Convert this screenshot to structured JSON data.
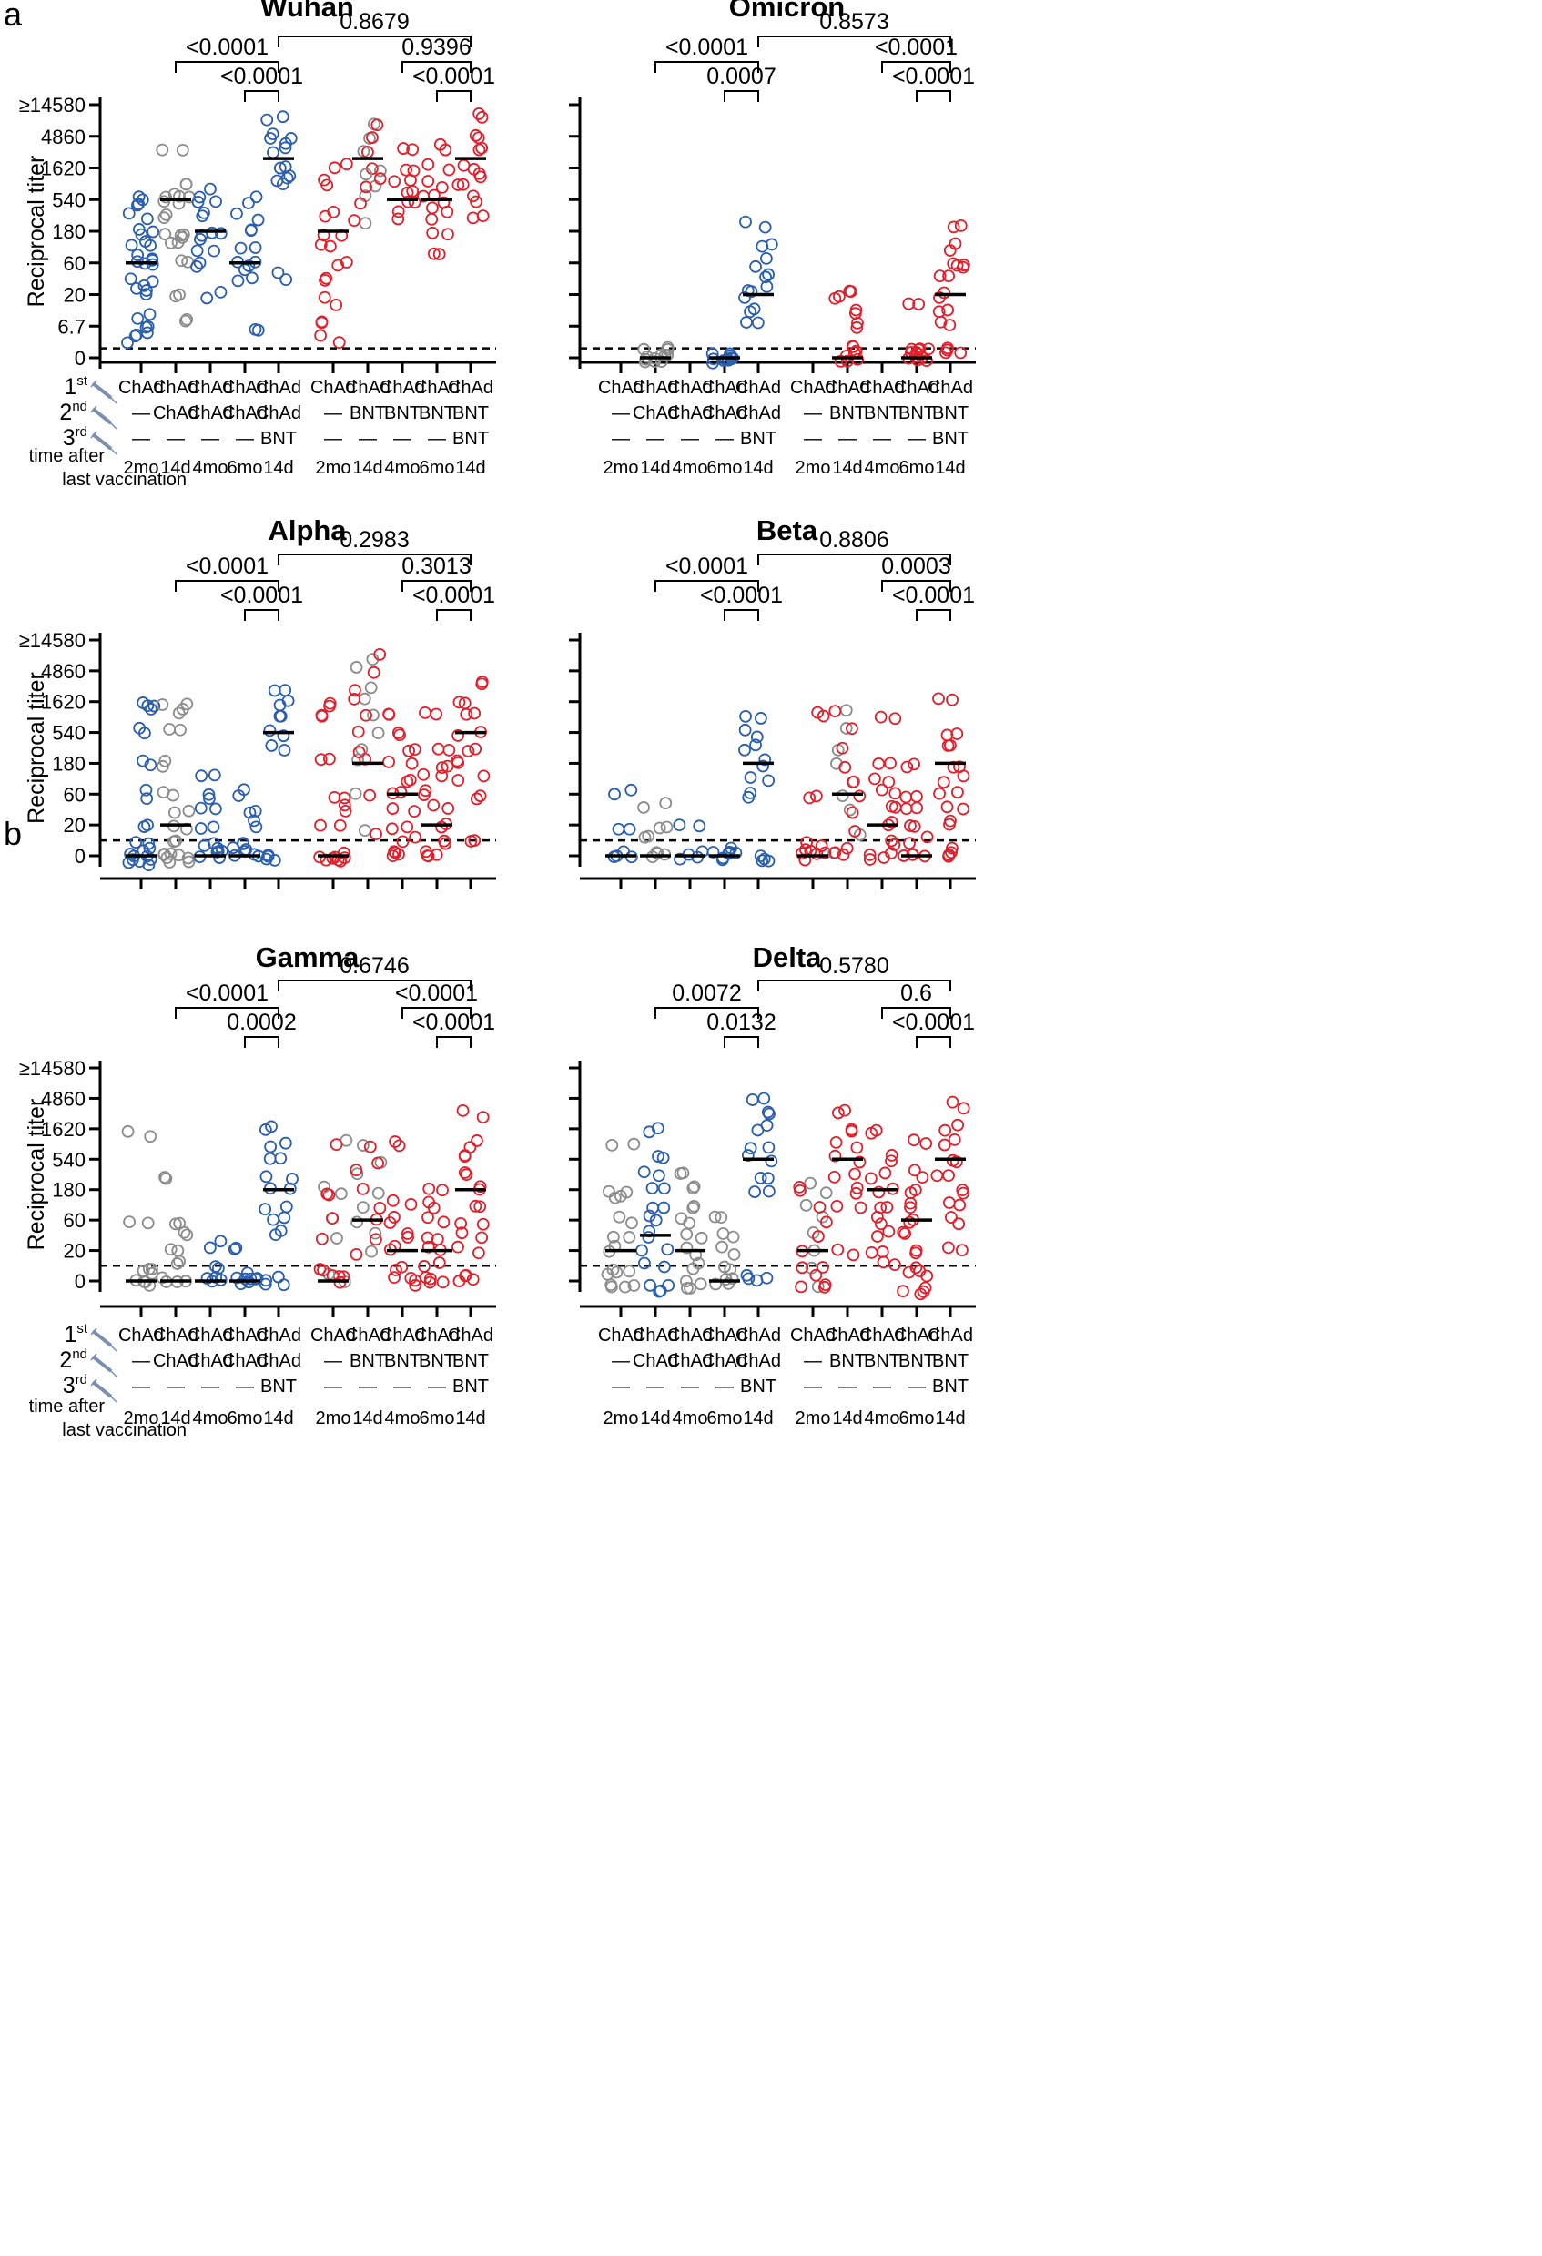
{
  "panel_letters": [
    "a",
    "b"
  ],
  "legend": {
    "rows": [
      {
        "base": "1",
        "sup": "st",
        "icon": "syringe-icon"
      },
      {
        "base": "2",
        "sup": "nd",
        "icon": "syringe-icon"
      },
      {
        "base": "3",
        "sup": "rd",
        "icon": "syringe-icon"
      }
    ],
    "time_label_line1": "time after",
    "time_label_line2": "last vaccination"
  },
  "groups": {
    "dose1": [
      "ChAd",
      "ChAd",
      "ChAd",
      "ChAd",
      "ChAd",
      "ChAd",
      "ChAd",
      "ChAd",
      "ChAd",
      "ChAd"
    ],
    "dose2": [
      "—",
      "ChAd",
      "ChAd",
      "ChAd",
      "ChAd",
      "—",
      "BNT",
      "BNT",
      "BNT",
      "BNT"
    ],
    "dose3": [
      "—",
      "—",
      "—",
      "—",
      "BNT",
      "—",
      "—",
      "—",
      "—",
      "BNT"
    ],
    "time": [
      "2mo",
      "14d",
      "4mo",
      "6mo",
      "14d",
      "2mo",
      "14d",
      "4mo",
      "6mo",
      "14d"
    ]
  },
  "colors": {
    "blue": "#2b5fad",
    "red": "#e2202c",
    "gray": "#8c8c8c",
    "axis": "#000000"
  },
  "chart_data": [
    {
      "type": "scatter",
      "title": "Wuhan",
      "ylabel": "Reciprocal titer",
      "yticks": [
        "0",
        "6.7",
        "20",
        "60",
        "180",
        "540",
        "1620",
        "4860",
        "≥14580"
      ],
      "ylim": [
        0,
        8
      ],
      "cutoff": 0.3,
      "medians": [
        3,
        5,
        4,
        3,
        6.3,
        4,
        6.3,
        5,
        5,
        6.3
      ],
      "brackets": [
        {
          "label": "<0.0001",
          "from": 1,
          "to": 4,
          "tier": 2
        },
        {
          "label": "<0.0001",
          "from": 3,
          "to": 4,
          "tier": 1
        },
        {
          "label": "0.8679",
          "from": 4,
          "to": 9,
          "tier": 3
        },
        {
          "label": "0.9396",
          "from": 7,
          "to": 9,
          "tier": 2
        },
        {
          "label": "<0.0001",
          "from": 8,
          "to": 9,
          "tier": 1
        }
      ]
    },
    {
      "type": "scatter",
      "title": "Omicron",
      "ylabel": "",
      "yticks": [
        "",
        "",
        "",
        "",
        "",
        "",
        "",
        "",
        ""
      ],
      "ylim": [
        0,
        8
      ],
      "cutoff": 0.3,
      "medians": [
        null,
        0,
        null,
        0,
        2,
        null,
        0,
        null,
        0,
        2
      ],
      "brackets": [
        {
          "label": "<0.0001",
          "from": 1,
          "to": 4,
          "tier": 2
        },
        {
          "label": "0.0007",
          "from": 3,
          "to": 4,
          "tier": 1
        },
        {
          "label": "0.8573",
          "from": 4,
          "to": 9,
          "tier": 3
        },
        {
          "label": "<0.0001",
          "from": 7,
          "to": 9,
          "tier": 2
        },
        {
          "label": "<0.0001",
          "from": 8,
          "to": 9,
          "tier": 1
        }
      ]
    },
    {
      "type": "scatter",
      "title": "Alpha",
      "ylabel": "Reciprocal titer",
      "yticks": [
        "0",
        "20",
        "60",
        "180",
        "540",
        "1620",
        "4860",
        "≥14580"
      ],
      "ylim": [
        0,
        7
      ],
      "cutoff": 0.5,
      "medians": [
        0,
        1,
        0,
        0,
        4,
        0,
        3,
        2,
        1,
        4
      ],
      "brackets": [
        {
          "label": "<0.0001",
          "from": 1,
          "to": 4,
          "tier": 2
        },
        {
          "label": "<0.0001",
          "from": 3,
          "to": 4,
          "tier": 1
        },
        {
          "label": "0.2983",
          "from": 4,
          "to": 9,
          "tier": 3
        },
        {
          "label": "0.3013",
          "from": 7,
          "to": 9,
          "tier": 2
        },
        {
          "label": "<0.0001",
          "from": 8,
          "to": 9,
          "tier": 1
        }
      ]
    },
    {
      "type": "scatter",
      "title": "Beta",
      "ylabel": "",
      "yticks": [
        "",
        "",
        "",
        "",
        "",
        "",
        "",
        ""
      ],
      "ylim": [
        0,
        7
      ],
      "cutoff": 0.5,
      "medians": [
        0,
        0,
        0,
        0,
        3,
        0,
        2,
        1,
        0,
        3
      ],
      "brackets": [
        {
          "label": "<0.0001",
          "from": 1,
          "to": 4,
          "tier": 2
        },
        {
          "label": "<0.0001",
          "from": 3,
          "to": 4,
          "tier": 1
        },
        {
          "label": "0.8806",
          "from": 4,
          "to": 9,
          "tier": 3
        },
        {
          "label": "0.0003",
          "from": 7,
          "to": 9,
          "tier": 2
        },
        {
          "label": "<0.0001",
          "from": 8,
          "to": 9,
          "tier": 1
        }
      ]
    },
    {
      "type": "scatter",
      "title": "Gamma",
      "ylabel": "Reciprocal titer",
      "yticks": [
        "0",
        "20",
        "60",
        "180",
        "540",
        "1620",
        "4860",
        "≥14580"
      ],
      "ylim": [
        0,
        7
      ],
      "cutoff": 0.5,
      "medians": [
        0,
        0,
        0,
        0,
        3,
        0,
        2,
        1,
        1,
        3
      ],
      "brackets": [
        {
          "label": "<0.0001",
          "from": 1,
          "to": 4,
          "tier": 2
        },
        {
          "label": "0.0002",
          "from": 3,
          "to": 4,
          "tier": 1
        },
        {
          "label": "0.6746",
          "from": 4,
          "to": 9,
          "tier": 3
        },
        {
          "label": "<0.0001",
          "from": 7,
          "to": 9,
          "tier": 2
        },
        {
          "label": "<0.0001",
          "from": 8,
          "to": 9,
          "tier": 1
        }
      ]
    },
    {
      "type": "scatter",
      "title": "Delta",
      "ylabel": "",
      "yticks": [
        "",
        "",
        "",
        "",
        "",
        "",
        "",
        ""
      ],
      "ylim": [
        0,
        7
      ],
      "cutoff": 0.5,
      "medians": [
        1,
        1.5,
        1,
        0,
        4,
        1,
        4,
        3,
        2,
        4
      ],
      "brackets": [
        {
          "label": "0.0072",
          "from": 1,
          "to": 4,
          "tier": 2
        },
        {
          "label": "0.0132",
          "from": 3,
          "to": 4,
          "tier": 1
        },
        {
          "label": "0.5780",
          "from": 4,
          "to": 9,
          "tier": 3
        },
        {
          "label": "0.6",
          "from": 7,
          "to": 9,
          "tier": 2
        },
        {
          "label": "<0.0001",
          "from": 8,
          "to": 9,
          "tier": 1
        }
      ]
    }
  ]
}
